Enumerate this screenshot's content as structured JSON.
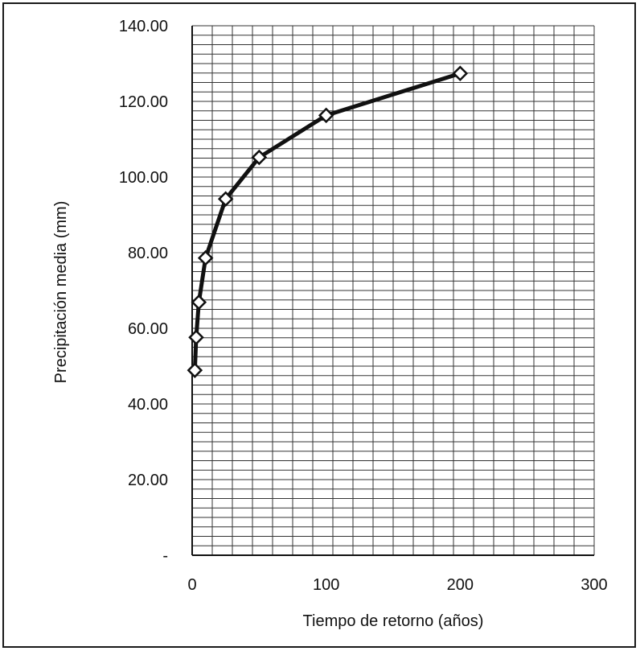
{
  "chart_data": {
    "type": "line",
    "title": "",
    "xlabel": "Tiempo de retorno (años)",
    "ylabel": "Precipitación media  (mm)",
    "xlim": [
      0,
      300
    ],
    "ylim": [
      0,
      140
    ],
    "x_ticks": [
      0,
      100,
      200,
      300
    ],
    "x_tick_labels": [
      "0",
      "100",
      "200",
      "300"
    ],
    "y_ticks": [
      0,
      20,
      40,
      60,
      80,
      100,
      120,
      140
    ],
    "y_tick_labels": [
      "-",
      "20.00",
      "40.00",
      "60.00",
      "80.00",
      "100.00",
      "120.00",
      "140.00"
    ],
    "grid": true,
    "legend": "none",
    "marker": "diamond",
    "series": [
      {
        "x": [
          2,
          3,
          5,
          10,
          25,
          50,
          100,
          200
        ],
        "y": [
          48.9,
          57.6,
          66.9,
          78.6,
          94.2,
          105.2,
          116.3,
          127.4
        ]
      }
    ],
    "colors": {
      "line": "#111111",
      "marker_fill": "#ffffff",
      "grid": "#333333"
    }
  }
}
